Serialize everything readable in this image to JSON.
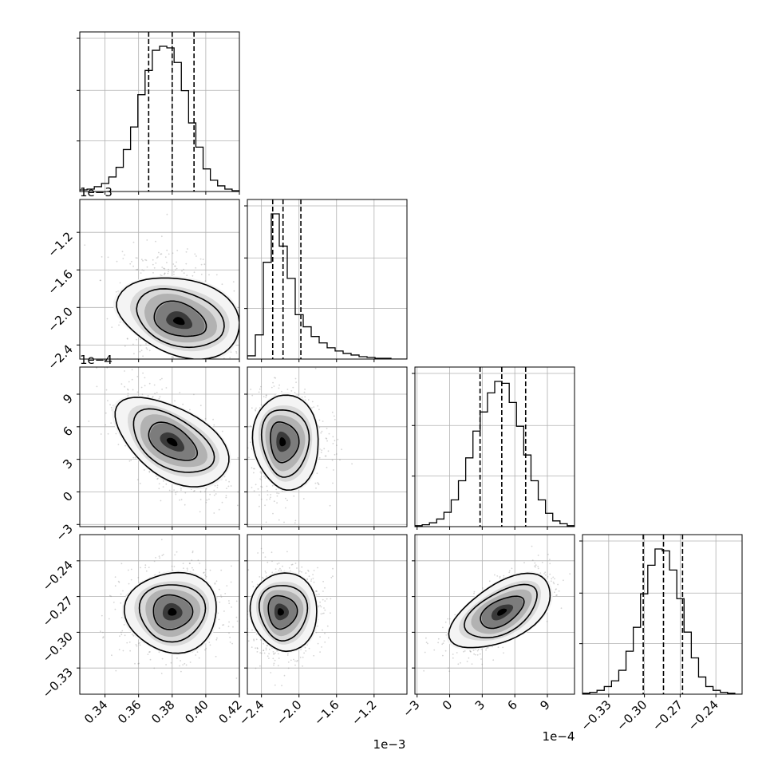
{
  "chart_data": {
    "type": "corner",
    "grid": true,
    "parameters": [
      {
        "range": [
          0.325,
          0.42
        ],
        "ticks": [
          0.34,
          0.36,
          0.38,
          0.4,
          0.42
        ],
        "tick_labels": [
          "0.34",
          "0.36",
          "0.38",
          "0.40",
          "0.42"
        ],
        "offset_label": ""
      },
      {
        "range": [
          -2.55,
          -0.85
        ],
        "ticks": [
          -2.4,
          -2.0,
          -1.6,
          -1.2
        ],
        "tick_labels": [
          "−2.4",
          "−2.0",
          "−1.6",
          "−1.2"
        ],
        "offset_label": "1e−3"
      },
      {
        "range": [
          -3.2,
          11.5
        ],
        "ticks": [
          -3,
          0,
          3,
          6,
          9
        ],
        "tick_labels": [
          "−3",
          "0",
          "3",
          "6",
          "9"
        ],
        "offset_label": "1e−4"
      },
      {
        "range": [
          -0.352,
          -0.218
        ],
        "ticks": [
          -0.33,
          -0.3,
          -0.27,
          -0.24
        ],
        "tick_labels": [
          "−0.33",
          "−0.30",
          "−0.27",
          "−0.24"
        ],
        "offset_label": ""
      }
    ],
    "histograms": [
      {
        "param": 0,
        "bin_edges_range": [
          0.325,
          0.42
        ],
        "counts": [
          2,
          3,
          6,
          10,
          18,
          30,
          52,
          80,
          120,
          150,
          175,
          180,
          178,
          160,
          125,
          85,
          55,
          28,
          14,
          7,
          3,
          1
        ],
        "quantiles": [
          0.366,
          0.38,
          0.393
        ]
      },
      {
        "param": 1,
        "bin_edges_range": [
          -2.55,
          -0.85
        ],
        "counts": [
          4,
          30,
          120,
          180,
          140,
          100,
          55,
          40,
          28,
          20,
          14,
          10,
          7,
          5,
          3,
          2,
          1,
          1,
          0,
          0
        ],
        "quantiles": [
          -2.28,
          -2.17,
          -1.98
        ]
      },
      {
        "param": 2,
        "bin_edges_range": [
          -3.2,
          11.5
        ],
        "counts": [
          1,
          2,
          4,
          8,
          15,
          28,
          48,
          72,
          100,
          120,
          140,
          152,
          150,
          130,
          105,
          75,
          48,
          28,
          14,
          6,
          3,
          1
        ],
        "quantiles": [
          2.8,
          4.8,
          7.0
        ]
      },
      {
        "param": 3,
        "bin_edges_range": [
          -0.352,
          -0.218
        ],
        "counts": [
          1,
          2,
          4,
          8,
          14,
          25,
          45,
          70,
          105,
          135,
          152,
          150,
          130,
          100,
          65,
          38,
          18,
          8,
          4,
          2,
          1,
          0
        ],
        "quantiles": [
          -0.301,
          -0.284,
          -0.268
        ]
      }
    ],
    "pairs": [
      {
        "x_param": 0,
        "y_param": 1,
        "mean": [
          0.384,
          -2.15
        ],
        "std": [
          0.014,
          0.22
        ],
        "corr": -0.35,
        "skew": "up"
      },
      {
        "x_param": 0,
        "y_param": 2,
        "mean": [
          0.38,
          4.6
        ],
        "std": [
          0.013,
          2.1
        ],
        "corr": -0.6
      },
      {
        "x_param": 1,
        "y_param": 2,
        "mean": [
          -2.18,
          4.6
        ],
        "std": [
          0.14,
          2.1
        ],
        "corr": 0.05,
        "skew": "right"
      },
      {
        "x_param": 0,
        "y_param": 3,
        "mean": [
          0.38,
          -0.283
        ],
        "std": [
          0.013,
          0.016
        ],
        "corr": 0.0
      },
      {
        "x_param": 1,
        "y_param": 3,
        "mean": [
          -2.2,
          -0.283
        ],
        "std": [
          0.14,
          0.016
        ],
        "corr": 0.1,
        "skew": "right"
      },
      {
        "x_param": 2,
        "y_param": 3,
        "mean": [
          4.8,
          -0.283
        ],
        "std": [
          2.0,
          0.015
        ],
        "corr": 0.7
      }
    ]
  }
}
